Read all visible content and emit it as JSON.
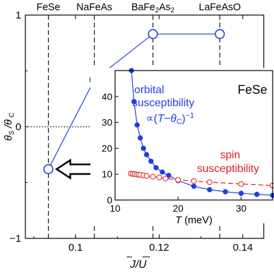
{
  "chart_data": [
    {
      "type": "line",
      "xlabel": "J/U",
      "ylabel": "θS /θ C",
      "xlim": [
        0.088,
        0.145
      ],
      "ylim": [
        -1,
        1
      ],
      "xticks": [
        "0.1",
        "0.12",
        "0.14"
      ],
      "xtick_values": [
        0.1,
        0.12,
        0.14
      ],
      "yticks": [
        "-1",
        "0",
        "1"
      ],
      "ytick_values": [
        -1,
        0,
        1
      ],
      "zero_line": "dotted",
      "materials": [
        {
          "label": "FeSe",
          "x": 0.0935
        },
        {
          "label": "NaFeAs",
          "x": 0.1045
        },
        {
          "label": "BaFe2As2",
          "label_main": "BaFe",
          "label_sub": "2",
          "label_mid": "As",
          "label_sub2": "2",
          "x": 0.1185
        },
        {
          "label": "LaFeAsO",
          "x": 0.1345
        }
      ],
      "series": [
        {
          "x": [
            0.0935,
            0.1045,
            0.1185,
            0.1345
          ],
          "y": [
            -0.38,
            0.42,
            0.83,
            0.83
          ],
          "color": "#1f3fe0",
          "marker": "open-circle"
        }
      ],
      "arrow_direction": "left"
    },
    {
      "type": "line",
      "title": "FeSe",
      "xlabel": "T (meV)",
      "xlim": [
        10,
        35
      ],
      "ylim": [
        0,
        50
      ],
      "xticks": [
        "10",
        "20",
        "30"
      ],
      "xtick_values": [
        10,
        20,
        30
      ],
      "yticks": [
        "0",
        "10",
        "20",
        "30",
        "40"
      ],
      "ytick_values": [
        0,
        10,
        20,
        30,
        40
      ],
      "series": [
        {
          "name": "orbital susceptibility",
          "formula": "∝(T−θC)−1",
          "color": "#1f3fe0",
          "marker": "filled-circle",
          "line": "solid",
          "x": [
            12.6,
            13.0,
            13.5,
            14.0,
            14.5,
            15.0,
            15.7,
            16.5,
            17.5,
            18.5,
            20.0,
            22.5,
            25.0,
            27.5,
            30.0,
            32.5,
            35.0
          ],
          "y": [
            50.0,
            38.0,
            29.0,
            24.0,
            20.0,
            17.5,
            15.0,
            12.5,
            10.8,
            9.5,
            7.5,
            5.3,
            4.0,
            3.2,
            2.6,
            2.2,
            1.8
          ]
        },
        {
          "name": "spin susceptibility",
          "color": "#e02020",
          "marker": "open-circle",
          "line": "dashed",
          "x": [
            12.5,
            12.8,
            13.1,
            13.4,
            13.7,
            14.0,
            14.5,
            15.0,
            16.0,
            17.0,
            18.0,
            20.0,
            22.5,
            25.0,
            30.0,
            35.0
          ],
          "y": [
            10.2,
            10.1,
            10.0,
            9.9,
            9.8,
            9.7,
            9.5,
            9.3,
            9.0,
            8.7,
            8.3,
            7.8,
            7.3,
            6.9,
            6.2,
            5.6
          ]
        }
      ]
    }
  ]
}
